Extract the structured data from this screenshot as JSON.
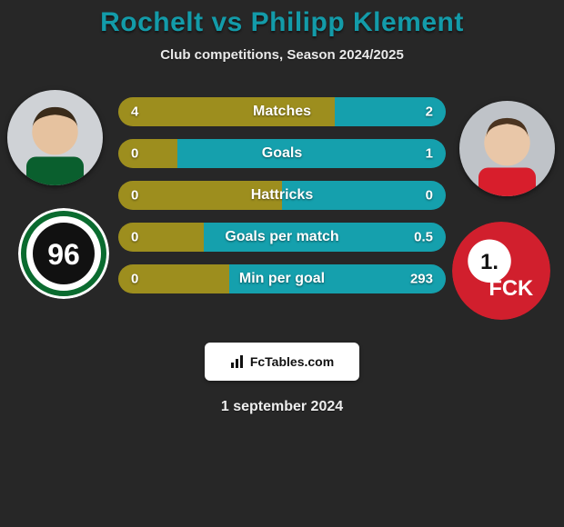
{
  "title": "Rochelt vs Philipp Klement",
  "subtitle": "Club competitions, Season 2024/2025",
  "date": "1 september 2024",
  "branding": {
    "label": "FcTables.com"
  },
  "colors": {
    "left_bar": "#9d8e1e",
    "right_bar": "#15a0ad",
    "title": "#139ba9",
    "background": "#272727"
  },
  "player_left": {
    "name": "Rochelt",
    "photo": {
      "skin": "#e6c29f",
      "hair": "#3a2b1a",
      "shirt": "#0a5f2e",
      "bg": "#cfd2d6"
    },
    "club": {
      "name": "Hannover 96",
      "bg": "#ffffff",
      "ring": "#0a6b2f",
      "inner": "#111111",
      "text": "96"
    }
  },
  "player_right": {
    "name": "Philipp Klement",
    "photo": {
      "skin": "#e9c7a8",
      "hair": "#4b3420",
      "shirt": "#d81e2c",
      "bg": "#bfc3c8"
    },
    "club": {
      "name": "1. FC Kaiserslautern",
      "bg": "#d11f2d",
      "disc": "#ffffff",
      "text_top": "1.",
      "text_bottom": "FCK"
    }
  },
  "bars": [
    {
      "label": "Matches",
      "left": "4",
      "right": "2",
      "left_pct": 66,
      "right_pct": 34
    },
    {
      "label": "Goals",
      "left": "0",
      "right": "1",
      "left_pct": 18,
      "right_pct": 82
    },
    {
      "label": "Hattricks",
      "left": "0",
      "right": "0",
      "left_pct": 50,
      "right_pct": 50
    },
    {
      "label": "Goals per match",
      "left": "0",
      "right": "0.5",
      "left_pct": 26,
      "right_pct": 74
    },
    {
      "label": "Min per goal",
      "left": "0",
      "right": "293",
      "left_pct": 34,
      "right_pct": 66
    }
  ]
}
